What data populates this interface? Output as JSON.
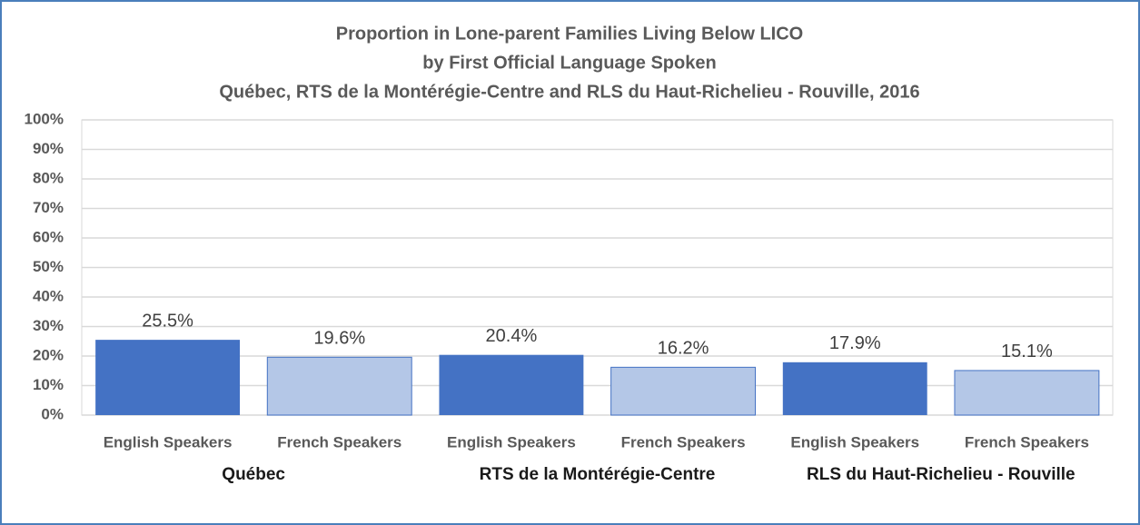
{
  "chart_data": {
    "type": "bar",
    "title": [
      "Proportion in Lone-parent Families Living Below LICO",
      "by First Official Language Spoken",
      "Québec, RTS de la Montérégie-Centre and RLS du Haut-Richelieu - Rouville, 2016"
    ],
    "groups": [
      {
        "name": "Québec",
        "categories": [
          "English Speakers",
          "French Speakers"
        ],
        "values": [
          25.5,
          19.6
        ],
        "value_labels": [
          "25.5%",
          "19.6%"
        ]
      },
      {
        "name": "RTS de la Montérégie-Centre",
        "categories": [
          "English Speakers",
          "French Speakers"
        ],
        "values": [
          20.4,
          16.2
        ],
        "value_labels": [
          "20.4%",
          "16.2%"
        ]
      },
      {
        "name": "RLS du Haut-Richelieu - Rouville",
        "categories": [
          "English Speakers",
          "French Speakers"
        ],
        "values": [
          17.9,
          15.1
        ],
        "value_labels": [
          "17.9%",
          "15.1%"
        ]
      }
    ],
    "colors": [
      "#4472c4",
      "#b4c7e7"
    ],
    "ylim": [
      0,
      100
    ],
    "yticks": [
      {
        "value": 0,
        "label": "0%"
      },
      {
        "value": 10,
        "label": "10%"
      },
      {
        "value": 20,
        "label": "20%"
      },
      {
        "value": 30,
        "label": "30%"
      },
      {
        "value": 40,
        "label": "40%"
      },
      {
        "value": 50,
        "label": "50%"
      },
      {
        "value": 60,
        "label": "60%"
      },
      {
        "value": 70,
        "label": "70%"
      },
      {
        "value": 80,
        "label": "80%"
      },
      {
        "value": 90,
        "label": "90%"
      },
      {
        "value": 100,
        "label": "100%"
      }
    ],
    "grid": true
  }
}
